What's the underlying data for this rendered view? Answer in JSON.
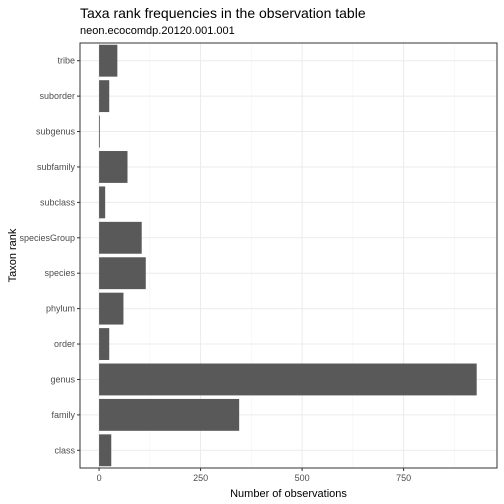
{
  "chart_data": {
    "type": "bar",
    "orientation": "horizontal",
    "title": "Taxa rank frequencies in the observation table",
    "subtitle": "neon.ecocomdp.20120.001.001",
    "xlabel": "Number of observations",
    "ylabel": "Taxon rank",
    "categories": [
      "class",
      "family",
      "genus",
      "order",
      "phylum",
      "species",
      "speciesGroup",
      "subclass",
      "subfamily",
      "subgenus",
      "suborder",
      "tribe"
    ],
    "values": [
      30,
      345,
      930,
      25,
      60,
      115,
      105,
      15,
      70,
      2,
      25,
      45
    ],
    "xlim": [
      -47,
      980
    ],
    "xticks": [
      0,
      250,
      500,
      750
    ],
    "xtick_labels": [
      "0",
      "250",
      "500",
      "750"
    ],
    "grid": true,
    "bar_color": "#595959",
    "panel_border_color": "#333333",
    "grid_major_color": "#ebebeb",
    "grid_minor_color": "#f5f5f5"
  }
}
